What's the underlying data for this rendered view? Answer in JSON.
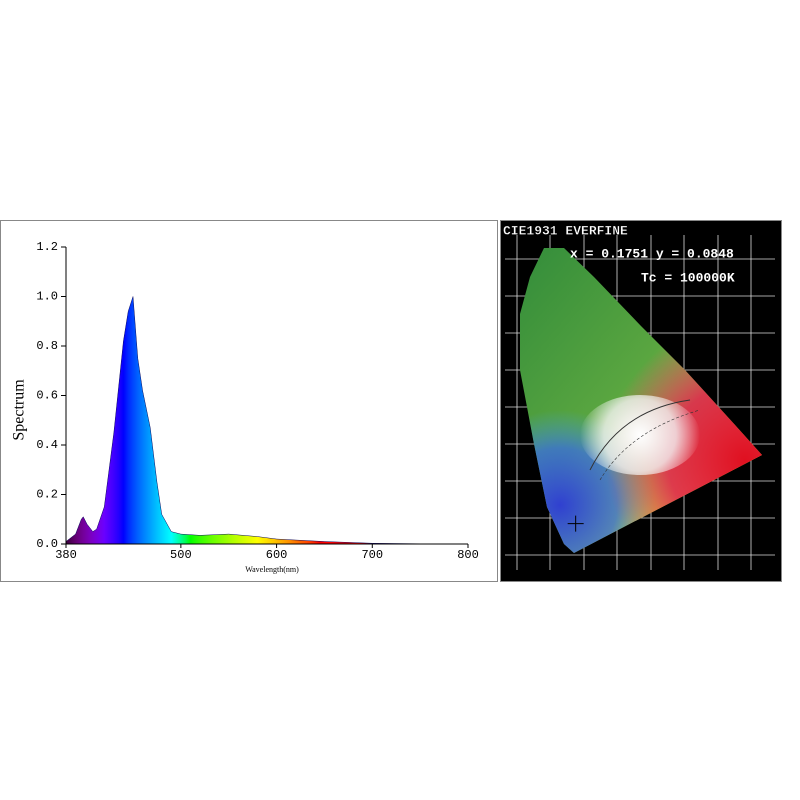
{
  "chart_data": [
    {
      "type": "area",
      "ylabel": "Spectrum",
      "xlabel": "Wavelength(nm)",
      "x": [
        380,
        390,
        396,
        398,
        402,
        408,
        412,
        420,
        430,
        440,
        445,
        450,
        455,
        460,
        468,
        475,
        480,
        490,
        500,
        520,
        550,
        580,
        600,
        650,
        700,
        750,
        800
      ],
      "values": [
        0.01,
        0.04,
        0.1,
        0.11,
        0.08,
        0.05,
        0.06,
        0.15,
        0.45,
        0.82,
        0.94,
        1.0,
        0.75,
        0.62,
        0.47,
        0.25,
        0.12,
        0.05,
        0.04,
        0.035,
        0.04,
        0.03,
        0.02,
        0.01,
        0.003,
        0.001,
        0
      ],
      "xlim": [
        380,
        800
      ],
      "ylim": [
        0,
        1.2
      ],
      "xticks": [
        380,
        500,
        600,
        700,
        800
      ],
      "yticks": [
        {
          "value": 0,
          "label": "0.0"
        },
        0.2,
        0.4,
        0.6,
        0.8,
        {
          "value": 1,
          "label": "1.0"
        },
        1.2
      ]
    },
    {
      "type": "cie",
      "title": "CIE1931 EVERFINE",
      "annotations": [
        "x = 0.1751 y = 0.0848",
        "Tc = 100000K"
      ],
      "point": {
        "x": 0.1751,
        "y": 0.0848
      }
    }
  ]
}
